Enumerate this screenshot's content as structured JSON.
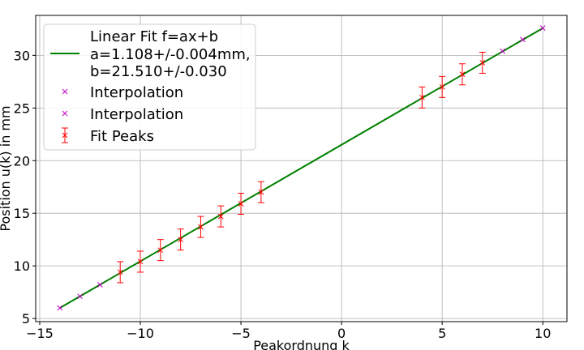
{
  "chart_data": {
    "type": "scatter",
    "xlabel": "Peakordnung k",
    "ylabel": "Position u(k) in mm",
    "xlim": [
      -15.2,
      11.2
    ],
    "ylim": [
      4.7,
      33.8
    ],
    "x_ticks": [
      -15,
      -10,
      -5,
      0,
      5,
      10
    ],
    "y_ticks": [
      5,
      10,
      15,
      20,
      25,
      30
    ],
    "grid": true,
    "legend_position": "top-left",
    "fit": {
      "label_lines": [
        "Linear Fit f=ax+b",
        "a=1.108+/-0.004mm,",
        "b=21.510+/-0.030"
      ],
      "a": 1.108,
      "b": 21.51,
      "x_range": [
        -14,
        10
      ],
      "color": "#008000"
    },
    "series": [
      {
        "name": "Interpolation",
        "marker": "x",
        "color": "#bf00bf",
        "x": [
          -14,
          -13,
          -12
        ],
        "y": [
          6.0,
          7.1,
          8.2
        ]
      },
      {
        "name": "Interpolation",
        "marker": "x",
        "color": "#bf00bf",
        "x": [
          8,
          9,
          10
        ],
        "y": [
          30.4,
          31.5,
          32.6
        ]
      },
      {
        "name": "Fit Peaks",
        "marker": "x",
        "color": "#ff0000",
        "error": 1.0,
        "x": [
          -11,
          -10,
          -9,
          -8,
          -7,
          -6,
          -5,
          -4,
          4,
          5,
          6,
          7
        ],
        "y": [
          9.4,
          10.4,
          11.5,
          12.5,
          13.7,
          14.7,
          15.9,
          17.0,
          26.0,
          27.0,
          28.2,
          29.3
        ]
      }
    ]
  }
}
